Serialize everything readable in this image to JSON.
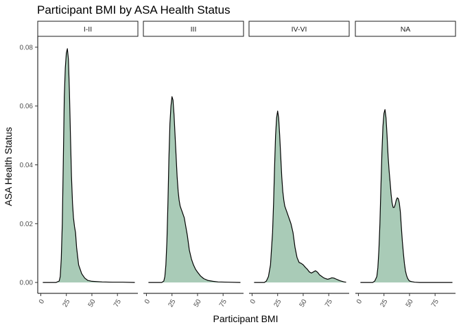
{
  "chart_data": {
    "type": "area",
    "title": "Participant BMI by ASA Health Status",
    "xlabel": "Participant BMI",
    "ylabel": "ASA Health Status",
    "xlim": [
      -3,
      95
    ],
    "ylim": [
      -0.0037,
      0.0837
    ],
    "x_ticks": [
      0,
      25,
      50,
      75
    ],
    "x_tick_labels": [
      "0",
      "25",
      "50",
      "75"
    ],
    "y_ticks": [
      0.0,
      0.02,
      0.04,
      0.06,
      0.08
    ],
    "y_tick_labels": [
      "0.00",
      "0.02",
      "0.04",
      "0.06",
      "0.08"
    ],
    "grid": false,
    "legend": "none",
    "fill_color": "#a9cbb7",
    "line_color": "#000000",
    "panels": [
      {
        "label": "I-II",
        "series": [
          {
            "x": [
              2,
              15,
              18,
              19,
              20,
              21,
              22,
              23,
              24,
              25,
              26,
              27,
              28,
              29,
              30,
              31,
              32,
              33,
              34,
              35,
              36,
              37,
              38,
              40,
              43,
              46,
              50,
              60,
              70,
              80,
              92
            ],
            "y": [
              0.0,
              0.0,
              0.0005,
              0.002,
              0.008,
              0.02,
              0.04,
              0.063,
              0.073,
              0.078,
              0.0795,
              0.076,
              0.065,
              0.05,
              0.036,
              0.027,
              0.022,
              0.019,
              0.017,
              0.012,
              0.009,
              0.006,
              0.005,
              0.003,
              0.0015,
              0.0007,
              0.0004,
              0.0002,
              0.0001,
              0.0001,
              0.0
            ]
          }
        ]
      },
      {
        "label": "III",
        "series": [
          {
            "x": [
              2,
              15,
              17,
              18,
              19,
              20,
              21,
              22,
              23,
              24,
              25,
              26,
              27,
              28,
              29,
              30,
              31,
              32,
              33,
              34,
              35,
              36,
              37,
              38,
              40,
              42,
              44,
              46,
              48,
              50,
              53,
              56,
              60,
              65,
              70,
              80,
              92
            ],
            "y": [
              0.0,
              0.0,
              0.0005,
              0.002,
              0.006,
              0.014,
              0.027,
              0.042,
              0.054,
              0.06,
              0.0632,
              0.062,
              0.057,
              0.05,
              0.043,
              0.036,
              0.031,
              0.028,
              0.026,
              0.025,
              0.024,
              0.023,
              0.022,
              0.02,
              0.016,
              0.011,
              0.008,
              0.006,
              0.0045,
              0.0035,
              0.0022,
              0.0013,
              0.0007,
              0.0004,
              0.0002,
              0.0001,
              0.0
            ]
          }
        ]
      },
      {
        "label": "IV-VI",
        "series": [
          {
            "x": [
              2,
              12,
              14,
              16,
              18,
              20,
              21,
              22,
              23,
              24,
              25,
              26,
              27,
              28,
              29,
              30,
              31,
              32,
              33,
              34,
              35,
              36,
              37,
              38,
              40,
              42,
              44,
              46,
              48,
              50,
              52,
              54,
              56,
              58,
              60,
              62,
              64,
              66,
              68,
              70,
              72,
              74,
              76,
              78,
              80,
              82,
              84,
              86,
              88,
              90,
              92
            ],
            "y": [
              0.0,
              0.0,
              0.0005,
              0.002,
              0.006,
              0.017,
              0.027,
              0.039,
              0.05,
              0.056,
              0.0583,
              0.056,
              0.05,
              0.043,
              0.036,
              0.031,
              0.028,
              0.026,
              0.025,
              0.024,
              0.023,
              0.022,
              0.021,
              0.02,
              0.017,
              0.012,
              0.0085,
              0.0068,
              0.0065,
              0.006,
              0.0052,
              0.0045,
              0.0036,
              0.0032,
              0.0036,
              0.004,
              0.0035,
              0.0026,
              0.0021,
              0.0016,
              0.0013,
              0.0011,
              0.0013,
              0.0016,
              0.0015,
              0.0012,
              0.0009,
              0.0006,
              0.0004,
              0.0002,
              0.0001
            ]
          }
        ]
      },
      {
        "label": "NA",
        "series": [
          {
            "x": [
              2,
              14,
              16,
              18,
              19,
              20,
              21,
              22,
              23,
              24,
              25,
              26,
              27,
              28,
              29,
              30,
              31,
              32,
              33,
              34,
              35,
              36,
              37,
              38,
              39,
              40,
              41,
              42,
              43,
              44,
              45,
              46,
              47,
              48,
              49,
              50,
              52,
              55,
              60,
              70,
              92
            ],
            "y": [
              0.0,
              0.0,
              0.0005,
              0.002,
              0.005,
              0.011,
              0.02,
              0.032,
              0.044,
              0.053,
              0.0575,
              0.0588,
              0.056,
              0.05,
              0.043,
              0.038,
              0.034,
              0.03,
              0.027,
              0.0255,
              0.0255,
              0.0265,
              0.028,
              0.0288,
              0.0285,
              0.027,
              0.024,
              0.019,
              0.014,
              0.01,
              0.0065,
              0.004,
              0.0025,
              0.0015,
              0.0009,
              0.0005,
              0.0003,
              0.0001,
              0.0,
              0.0,
              0.0
            ]
          }
        ]
      }
    ]
  }
}
